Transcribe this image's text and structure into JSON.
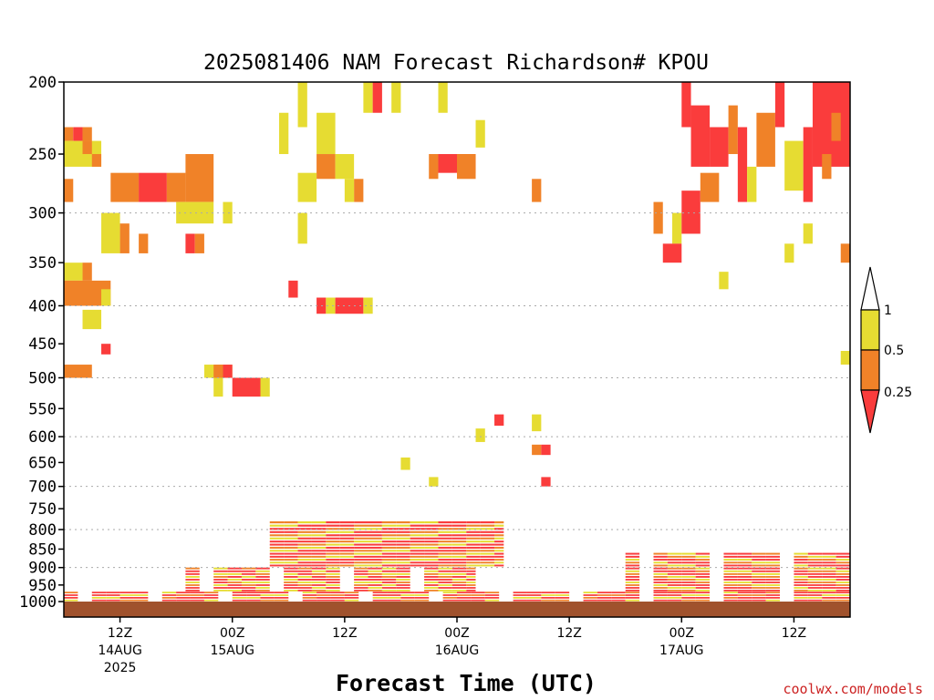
{
  "chart_data": {
    "type": "heatmap",
    "title": "2025081406 NAM Forecast Richardson# KPOU",
    "xlabel": "Forecast Time (UTC)",
    "ylabel": "",
    "credit": "coolwx.com/models",
    "y_scale": "log-pressure",
    "y_ticks": [
      200,
      250,
      300,
      350,
      400,
      450,
      500,
      550,
      600,
      650,
      700,
      750,
      800,
      850,
      900,
      950,
      1000
    ],
    "ylim": [
      1000,
      200
    ],
    "grid_lines_at": [
      300,
      400,
      500,
      600,
      700,
      800,
      900
    ],
    "x_start": "2025-08-14T06Z",
    "x_end": "2025-08-17T18Z",
    "x_ticks": [
      {
        "time": "2025-08-14T12Z",
        "lines": [
          "12Z",
          "14AUG",
          "2025"
        ]
      },
      {
        "time": "2025-08-15T00Z",
        "lines": [
          "00Z",
          "15AUG"
        ]
      },
      {
        "time": "2025-08-15T12Z",
        "lines": [
          "12Z"
        ]
      },
      {
        "time": "2025-08-16T00Z",
        "lines": [
          "00Z",
          "16AUG"
        ]
      },
      {
        "time": "2025-08-16T12Z",
        "lines": [
          "12Z"
        ]
      },
      {
        "time": "2025-08-17T00Z",
        "lines": [
          "00Z",
          "17AUG"
        ]
      },
      {
        "time": "2025-08-17T12Z",
        "lines": [
          "12Z"
        ]
      }
    ],
    "legend": {
      "placement": "right",
      "levels": [
        "1",
        "0.5",
        "0.25"
      ],
      "colors": {
        "top": "#ffffff",
        "yellow": "#e6dc32",
        "orange": "#f08228",
        "red": "#fa3c3c"
      }
    },
    "ground_color": "#a0522d",
    "cells": [
      [
        "2025-08-14T06Z",
        "2025-08-14T07Z",
        230,
        240,
        "orange"
      ],
      [
        "2025-08-14T07Z",
        "2025-08-14T08Z",
        230,
        240,
        "red"
      ],
      [
        "2025-08-14T08Z",
        "2025-08-14T09Z",
        230,
        240,
        "orange"
      ],
      [
        "2025-08-14T06Z",
        "2025-08-14T10Z",
        240,
        260,
        "yellow"
      ],
      [
        "2025-08-14T08Z",
        "2025-08-14T09Z",
        240,
        250,
        "orange"
      ],
      [
        "2025-08-14T09Z",
        "2025-08-14T10Z",
        250,
        260,
        "orange"
      ],
      [
        "2025-08-14T06Z",
        "2025-08-14T07Z",
        270,
        290,
        "orange"
      ],
      [
        "2025-08-14T11Z",
        "2025-08-14T14Z",
        265,
        290,
        "orange"
      ],
      [
        "2025-08-14T14Z",
        "2025-08-14T17Z",
        265,
        290,
        "red"
      ],
      [
        "2025-08-14T17Z",
        "2025-08-14T19Z",
        265,
        290,
        "orange"
      ],
      [
        "2025-08-14T19Z",
        "2025-08-14T22Z",
        250,
        290,
        "orange"
      ],
      [
        "2025-08-14T18Z",
        "2025-08-14T22Z",
        290,
        310,
        "yellow"
      ],
      [
        "2025-08-14T23Z",
        "2025-08-15T00Z",
        290,
        310,
        "yellow"
      ],
      [
        "2025-08-14T10Z",
        "2025-08-14T12Z",
        300,
        340,
        "yellow"
      ],
      [
        "2025-08-14T12Z",
        "2025-08-14T13Z",
        310,
        340,
        "orange"
      ],
      [
        "2025-08-14T14Z",
        "2025-08-14T15Z",
        320,
        340,
        "orange"
      ],
      [
        "2025-08-14T19Z",
        "2025-08-14T20Z",
        320,
        340,
        "red"
      ],
      [
        "2025-08-14T20Z",
        "2025-08-14T21Z",
        320,
        340,
        "orange"
      ],
      [
        "2025-08-14T06Z",
        "2025-08-14T08Z",
        350,
        370,
        "yellow"
      ],
      [
        "2025-08-14T08Z",
        "2025-08-14T09Z",
        350,
        370,
        "orange"
      ],
      [
        "2025-08-14T06Z",
        "2025-08-14T11Z",
        370,
        400,
        "orange"
      ],
      [
        "2025-08-14T10Z",
        "2025-08-14T11Z",
        380,
        400,
        "yellow"
      ],
      [
        "2025-08-14T08Z",
        "2025-08-14T10Z",
        405,
        430,
        "yellow"
      ],
      [
        "2025-08-14T10Z",
        "2025-08-14T11Z",
        450,
        465,
        "red"
      ],
      [
        "2025-08-14T06Z",
        "2025-08-14T09Z",
        480,
        500,
        "orange"
      ],
      [
        "2025-08-14T21Z",
        "2025-08-15T00Z",
        480,
        500,
        "yellow"
      ],
      [
        "2025-08-14T22Z",
        "2025-08-14T23Z",
        480,
        500,
        "orange"
      ],
      [
        "2025-08-14T23Z",
        "2025-08-15T00Z",
        480,
        500,
        "red"
      ],
      [
        "2025-08-14T22Z",
        "2025-08-14T23Z",
        500,
        530,
        "yellow"
      ],
      [
        "2025-08-15T00Z",
        "2025-08-15T03Z",
        500,
        530,
        "red"
      ],
      [
        "2025-08-15T03Z",
        "2025-08-15T04Z",
        500,
        530,
        "yellow"
      ],
      [
        "2025-08-15T07Z",
        "2025-08-15T08Z",
        200,
        230,
        "yellow"
      ],
      [
        "2025-08-15T09Z",
        "2025-08-15T11Z",
        220,
        250,
        "yellow"
      ],
      [
        "2025-08-15T09Z",
        "2025-08-15T11Z",
        250,
        270,
        "orange"
      ],
      [
        "2025-08-15T11Z",
        "2025-08-15T13Z",
        250,
        270,
        "yellow"
      ],
      [
        "2025-08-15T13Z",
        "2025-08-15T14Z",
        270,
        290,
        "orange"
      ],
      [
        "2025-08-15T12Z",
        "2025-08-15T13Z",
        270,
        290,
        "yellow"
      ],
      [
        "2025-08-15T05Z",
        "2025-08-15T06Z",
        220,
        250,
        "yellow"
      ],
      [
        "2025-08-15T07Z",
        "2025-08-15T09Z",
        265,
        290,
        "yellow"
      ],
      [
        "2025-08-15T07Z",
        "2025-08-15T08Z",
        300,
        330,
        "yellow"
      ],
      [
        "2025-08-15T06Z",
        "2025-08-15T07Z",
        370,
        390,
        "red"
      ],
      [
        "2025-08-15T09Z",
        "2025-08-15T10Z",
        390,
        410,
        "red"
      ],
      [
        "2025-08-15T10Z",
        "2025-08-15T11Z",
        390,
        410,
        "yellow"
      ],
      [
        "2025-08-15T11Z",
        "2025-08-15T14Z",
        390,
        410,
        "red"
      ],
      [
        "2025-08-15T14Z",
        "2025-08-15T15Z",
        390,
        410,
        "yellow"
      ],
      [
        "2025-08-15T14Z",
        "2025-08-15T15Z",
        200,
        220,
        "yellow"
      ],
      [
        "2025-08-15T15Z",
        "2025-08-15T16Z",
        200,
        220,
        "red"
      ],
      [
        "2025-08-15T17Z",
        "2025-08-15T18Z",
        200,
        220,
        "yellow"
      ],
      [
        "2025-08-15T22Z",
        "2025-08-15T23Z",
        200,
        220,
        "yellow"
      ],
      [
        "2025-08-15T21Z",
        "2025-08-15T22Z",
        250,
        270,
        "orange"
      ],
      [
        "2025-08-15T22Z",
        "2025-08-16T02Z",
        250,
        265,
        "red"
      ],
      [
        "2025-08-16T00Z",
        "2025-08-16T02Z",
        250,
        270,
        "orange"
      ],
      [
        "2025-08-16T02Z",
        "2025-08-16T03Z",
        225,
        245,
        "yellow"
      ],
      [
        "2025-08-16T08Z",
        "2025-08-16T09Z",
        270,
        290,
        "orange"
      ],
      [
        "2025-08-16T04Z",
        "2025-08-16T05Z",
        560,
        580,
        "red"
      ],
      [
        "2025-08-16T08Z",
        "2025-08-16T09Z",
        560,
        590,
        "yellow"
      ],
      [
        "2025-08-16T02Z",
        "2025-08-16T03Z",
        585,
        610,
        "yellow"
      ],
      [
        "2025-08-16T08Z",
        "2025-08-16T09Z",
        615,
        635,
        "orange"
      ],
      [
        "2025-08-16T09Z",
        "2025-08-16T10Z",
        615,
        635,
        "red"
      ],
      [
        "2025-08-16T09Z",
        "2025-08-16T10Z",
        680,
        700,
        "red"
      ],
      [
        "2025-08-15T18Z",
        "2025-08-15T19Z",
        640,
        665,
        "yellow"
      ],
      [
        "2025-08-15T21Z",
        "2025-08-15T22Z",
        680,
        700,
        "yellow"
      ],
      [
        "2025-08-16T21Z",
        "2025-08-16T22Z",
        290,
        320,
        "orange"
      ],
      [
        "2025-08-16T23Z",
        "2025-08-17T00Z",
        300,
        330,
        "yellow"
      ],
      [
        "2025-08-17T00Z",
        "2025-08-17T02Z",
        280,
        320,
        "red"
      ],
      [
        "2025-08-17T02Z",
        "2025-08-17T04Z",
        265,
        290,
        "orange"
      ],
      [
        "2025-08-16T22Z",
        "2025-08-17T00Z",
        330,
        350,
        "red"
      ],
      [
        "2025-08-17T04Z",
        "2025-08-17T05Z",
        360,
        380,
        "yellow"
      ],
      [
        "2025-08-17T00Z",
        "2025-08-17T01Z",
        200,
        230,
        "red"
      ],
      [
        "2025-08-17T01Z",
        "2025-08-17T03Z",
        215,
        260,
        "red"
      ],
      [
        "2025-08-17T03Z",
        "2025-08-17T05Z",
        230,
        260,
        "red"
      ],
      [
        "2025-08-17T05Z",
        "2025-08-17T06Z",
        215,
        250,
        "orange"
      ],
      [
        "2025-08-17T06Z",
        "2025-08-17T07Z",
        230,
        290,
        "red"
      ],
      [
        "2025-08-17T07Z",
        "2025-08-17T08Z",
        260,
        290,
        "yellow"
      ],
      [
        "2025-08-17T08Z",
        "2025-08-17T10Z",
        220,
        260,
        "orange"
      ],
      [
        "2025-08-17T10Z",
        "2025-08-17T11Z",
        200,
        230,
        "red"
      ],
      [
        "2025-08-17T11Z",
        "2025-08-17T13Z",
        240,
        280,
        "yellow"
      ],
      [
        "2025-08-17T13Z",
        "2025-08-17T14Z",
        230,
        290,
        "red"
      ],
      [
        "2025-08-17T14Z",
        "2025-08-17T18Z",
        200,
        260,
        "red"
      ],
      [
        "2025-08-17T15Z",
        "2025-08-17T16Z",
        250,
        270,
        "orange"
      ],
      [
        "2025-08-17T16Z",
        "2025-08-17T17Z",
        220,
        240,
        "orange"
      ],
      [
        "2025-08-17T11Z",
        "2025-08-17T12Z",
        330,
        350,
        "yellow"
      ],
      [
        "2025-08-17T13Z",
        "2025-08-17T14Z",
        310,
        330,
        "yellow"
      ],
      [
        "2025-08-17T17Z",
        "2025-08-17T18Z",
        330,
        350,
        "orange"
      ],
      [
        "2025-08-17T17Z",
        "2025-08-17T18Z",
        460,
        480,
        "yellow"
      ]
    ],
    "lower_band": [
      {
        "start": "2025-08-14T06Z",
        "end": "2025-08-17T18Z",
        "p_top": 970,
        "p_bot": 1000,
        "mix": [
          "red",
          "yellow",
          "red",
          "orange",
          "red"
        ]
      },
      {
        "start": "2025-08-14T19Z",
        "end": "2025-08-16T02Z",
        "p_top": 900,
        "p_bot": 970,
        "mix": [
          "red",
          "yellow",
          "orange",
          "red",
          "red",
          "yellow"
        ]
      },
      {
        "start": "2025-08-15T04Z",
        "end": "2025-08-16T05Z",
        "p_top": 780,
        "p_bot": 900,
        "mix": [
          "red",
          "orange",
          "yellow",
          "red"
        ]
      },
      {
        "start": "2025-08-16T18Z",
        "end": "2025-08-17T18Z",
        "p_top": 860,
        "p_bot": 970,
        "mix": [
          "red",
          "yellow",
          "orange",
          "red"
        ]
      }
    ]
  }
}
